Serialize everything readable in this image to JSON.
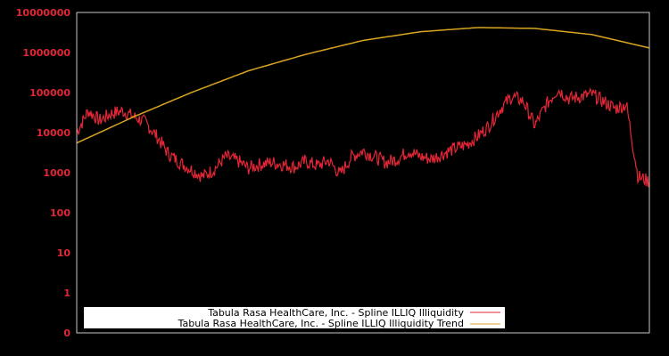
{
  "chart_data": {
    "type": "line",
    "title": "",
    "xlabel": "",
    "ylabel": "",
    "yscale": "log",
    "ylim": [
      0,
      10000000
    ],
    "yticks": [
      "10000000",
      "1000000",
      "100000",
      "10000",
      "1000",
      "100",
      "10",
      "1",
      "0"
    ],
    "grid": false,
    "legend_position": "lower-left inside",
    "background": "#000000",
    "series": [
      {
        "name": "Tabula Rasa HealthCare, Inc. - Spline ILLIQ Illiquidity",
        "color": "#e32636",
        "x_frac": [
          0.0,
          0.02,
          0.04,
          0.06,
          0.08,
          0.1,
          0.12,
          0.14,
          0.16,
          0.18,
          0.2,
          0.22,
          0.24,
          0.26,
          0.28,
          0.3,
          0.32,
          0.34,
          0.36,
          0.38,
          0.4,
          0.42,
          0.44,
          0.46,
          0.48,
          0.5,
          0.52,
          0.54,
          0.56,
          0.58,
          0.6,
          0.62,
          0.64,
          0.66,
          0.68,
          0.7,
          0.72,
          0.74,
          0.76,
          0.78,
          0.8,
          0.82,
          0.84,
          0.86,
          0.88,
          0.9,
          0.92,
          0.94,
          0.96,
          0.98,
          1.0
        ],
        "values": [
          10000,
          35000,
          20000,
          30000,
          35000,
          25000,
          18000,
          8000,
          3000,
          1800,
          1200,
          800,
          1200,
          2500,
          2000,
          1300,
          1600,
          1800,
          1600,
          1400,
          1900,
          1500,
          2000,
          900,
          2500,
          3500,
          2500,
          1800,
          2200,
          3500,
          2500,
          2200,
          3000,
          4000,
          5000,
          8000,
          15000,
          40000,
          80000,
          60000,
          15000,
          50000,
          120000,
          70000,
          80000,
          90000,
          60000,
          40000,
          50000,
          800,
          600
        ]
      },
      {
        "name": "Tabula Rasa HealthCare, Inc. - Spline ILLIQ Illiquidity Trend",
        "color": "#daa520",
        "x_frac": [
          0.0,
          0.1,
          0.2,
          0.3,
          0.4,
          0.5,
          0.6,
          0.7,
          0.8,
          0.9,
          1.0
        ],
        "values": [
          5500,
          25000,
          100000,
          350000,
          900000,
          2000000,
          3300000,
          4200000,
          4000000,
          2800000,
          1300000
        ]
      }
    ]
  },
  "legend": {
    "items": [
      {
        "label": "Tabula Rasa HealthCare, Inc. - Spline ILLIQ Illiquidity",
        "color": "#e32636"
      },
      {
        "label": "Tabula Rasa HealthCare, Inc. - Spline ILLIQ Illiquidity Trend",
        "color": "#daa520"
      }
    ]
  }
}
